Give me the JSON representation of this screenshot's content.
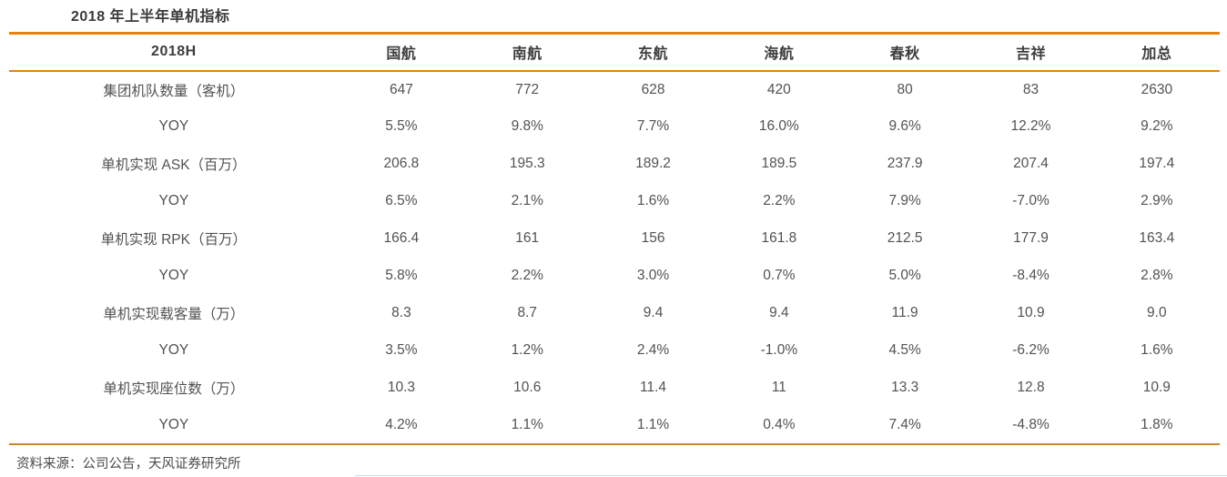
{
  "title": "2018 年上半年单机指标",
  "table": {
    "header": [
      "2018H",
      "国航",
      "南航",
      "东航",
      "海航",
      "春秋",
      "吉祥",
      "加总"
    ],
    "rows": [
      {
        "label": "集团机队数量（客机）",
        "values": [
          "647",
          "772",
          "628",
          "420",
          "80",
          "83",
          "2630"
        ]
      },
      {
        "label": "YOY",
        "values": [
          "5.5%",
          "9.8%",
          "7.7%",
          "16.0%",
          "9.6%",
          "12.2%",
          "9.2%"
        ]
      },
      {
        "label": "单机实现 ASK（百万）",
        "values": [
          "206.8",
          "195.3",
          "189.2",
          "189.5",
          "237.9",
          "207.4",
          "197.4"
        ]
      },
      {
        "label": "YOY",
        "values": [
          "6.5%",
          "2.1%",
          "1.6%",
          "2.2%",
          "7.9%",
          "-7.0%",
          "2.9%"
        ]
      },
      {
        "label": "单机实现 RPK（百万）",
        "values": [
          "166.4",
          "161",
          "156",
          "161.8",
          "212.5",
          "177.9",
          "163.4"
        ]
      },
      {
        "label": "YOY",
        "values": [
          "5.8%",
          "2.2%",
          "3.0%",
          "0.7%",
          "5.0%",
          "-8.4%",
          "2.8%"
        ]
      },
      {
        "label": "单机实现载客量（万）",
        "values": [
          "8.3",
          "8.7",
          "9.4",
          "9.4",
          "11.9",
          "10.9",
          "9.0"
        ]
      },
      {
        "label": "YOY",
        "values": [
          "3.5%",
          "1.2%",
          "2.4%",
          "-1.0%",
          "4.5%",
          "-6.2%",
          "1.6%"
        ]
      },
      {
        "label": "单机实现座位数（万）",
        "values": [
          "10.3",
          "10.6",
          "11.4",
          "11",
          "13.3",
          "12.8",
          "10.9"
        ]
      },
      {
        "label": "YOY",
        "values": [
          "4.2%",
          "1.1%",
          "1.1%",
          "0.4%",
          "7.4%",
          "-4.8%",
          "1.8%"
        ]
      }
    ]
  },
  "footer": {
    "source": "资料来源：公司公告，天风证券研究所"
  },
  "colors": {
    "accent_orange": "#e8820e",
    "bottom_rule": "#c9872d",
    "header_text": "#3d3e3f",
    "body_text": "#525254",
    "faint_blue_line": "#c9ddf0"
  }
}
